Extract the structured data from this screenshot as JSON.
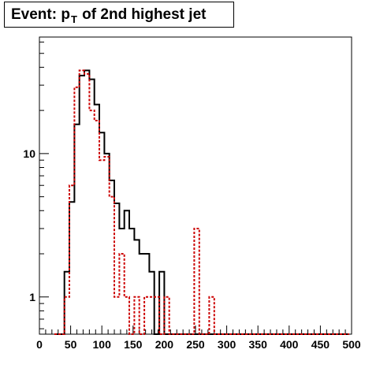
{
  "chart_data": {
    "type": "line",
    "title": {
      "prefix": "Event: p",
      "subscript": "T",
      "suffix": " of 2nd highest jet"
    },
    "xlabel": "",
    "ylabel": "",
    "xlim": [
      0,
      500
    ],
    "ylim": [
      0.55,
      65
    ],
    "yscale": "log",
    "grid": false,
    "x_ticks": [
      0,
      50,
      100,
      150,
      200,
      250,
      300,
      350,
      400,
      450,
      500
    ],
    "y_ticks": [
      1,
      10
    ],
    "bin_width": 8,
    "series": [
      {
        "color": "#000000",
        "style": "solid",
        "bins_start": 24,
        "values": [
          0,
          0,
          1.5,
          4.6,
          16,
          35,
          38,
          33,
          22,
          14,
          10,
          6.5,
          4.5,
          3,
          4,
          3,
          2.5,
          2,
          2,
          1.5,
          0,
          1.5,
          0,
          0,
          0,
          0,
          0,
          0,
          0,
          0,
          0,
          0,
          0,
          0,
          0,
          0,
          0,
          0,
          0,
          0,
          0,
          0,
          0,
          0,
          0,
          0,
          0,
          0,
          0,
          0,
          0,
          0,
          0,
          0,
          0,
          0,
          0,
          0,
          0
        ]
      },
      {
        "color": "#cc0000",
        "style": "dotted",
        "bins_start": 24,
        "values": [
          0,
          0,
          1,
          6,
          29,
          38,
          36,
          20,
          17,
          9,
          9.5,
          5,
          1,
          2,
          1,
          0,
          1,
          0,
          1,
          1,
          1,
          0,
          1,
          0,
          0,
          0,
          0,
          0,
          3,
          0,
          0,
          1,
          0,
          0,
          0,
          0,
          0,
          0,
          0,
          0,
          0,
          0,
          0,
          0,
          0,
          0,
          0,
          0,
          0,
          0,
          0,
          0,
          0,
          0,
          0,
          0,
          0,
          0,
          0
        ]
      }
    ]
  }
}
